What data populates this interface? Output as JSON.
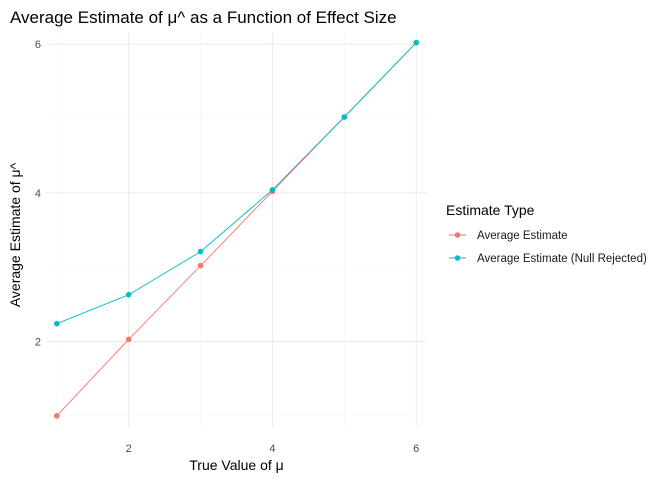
{
  "chart_data": {
    "type": "line",
    "title": "Average Estimate of μ^ as a Function of Effect Size",
    "xlabel": "True Value of μ",
    "ylabel": "Average Estimate of μ^",
    "xlim": [
      0.85,
      6.15
    ],
    "ylim": [
      0.85,
      6.15
    ],
    "x_ticks": [
      2,
      4,
      6
    ],
    "y_ticks": [
      2,
      4,
      6
    ],
    "grid": true,
    "legend": {
      "title": "Estimate Type",
      "position": "right"
    },
    "series": [
      {
        "name": "Average Estimate",
        "color": "#F8766D",
        "x": [
          1,
          2,
          3,
          4,
          5,
          6
        ],
        "y": [
          1.0,
          2.03,
          3.02,
          4.02,
          5.02,
          6.02
        ]
      },
      {
        "name": "Average Estimate (Null Rejected)",
        "color": "#00BFC4",
        "x": [
          1,
          2,
          3,
          4,
          5,
          6
        ],
        "y": [
          2.24,
          2.63,
          3.21,
          4.04,
          5.02,
          6.02
        ]
      }
    ]
  }
}
